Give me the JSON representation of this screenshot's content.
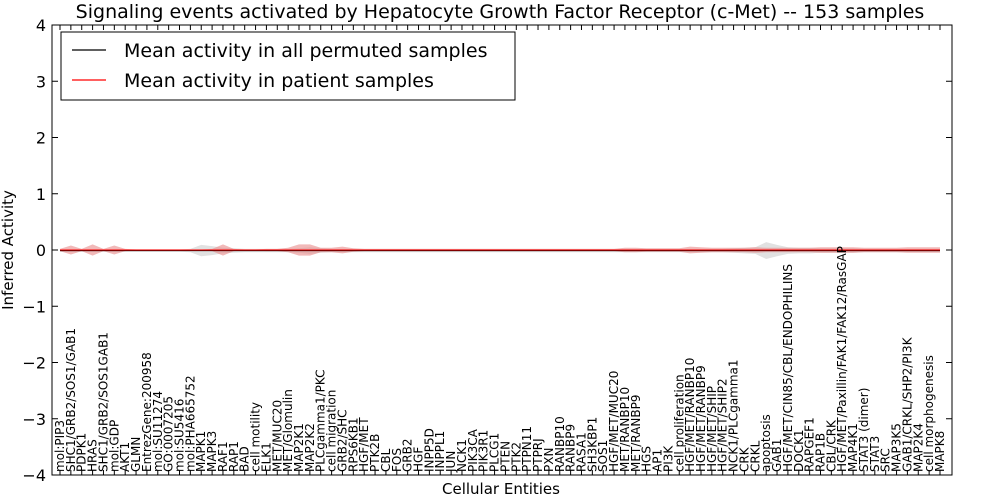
{
  "chart_data": {
    "type": "line",
    "title": "Signaling events activated by Hepatocyte Growth Factor Receptor (c-Met) -- 153 samples",
    "xlabel": "Cellular Entities",
    "ylabel": "Inferred Activity",
    "ylim": [
      -4,
      4
    ],
    "yticks": [
      4,
      3,
      2,
      1,
      0,
      -1,
      -2,
      -3,
      -4
    ],
    "ytick_labels": [
      "4",
      "3",
      "2",
      "1",
      "0",
      "−1",
      "−2",
      "−3",
      "−4"
    ],
    "legend": {
      "position": "top-left"
    },
    "categories": [
      "mol:PIP3",
      "SHC1/GRB2/SOS1/GAB1",
      "PDPK1",
      "HRAS",
      "SHC1/GRB2/SOS1GAB1",
      "mol:GDP",
      "AKT1",
      "GLMN",
      "EntrezGene:200958",
      "mol:SU11274",
      "GO:0007205",
      "mol:SU5416",
      "mol:PHA665752",
      "MAPK1",
      "MAPK3",
      "RAF1",
      "RAP1",
      "BAD",
      "cell motility",
      "ELK1",
      "MET/MUC20",
      "MET/Glomulin",
      "MAP2K1",
      "MAP2K2",
      "PLCgamma1/PKC",
      "cell migration",
      "GRB2/SHC",
      "RPS6KB1",
      "HGF/MET",
      "PTK2B",
      "CBL",
      "FOS",
      "GRB2",
      "HGF",
      "INPP5D",
      "INPPL1",
      "JUN",
      "NCK1",
      "PIK3CA",
      "PIK3R1",
      "PLCG1",
      "PTEN",
      "PTK2",
      "PTPN11",
      "PTPRJ",
      "PXN",
      "RANBP10",
      "RANBP9",
      "RASA1",
      "SH3KBP1",
      "SOS1",
      "HGF/MET/MUC20",
      "MET/RANBP10",
      "MET/RANBP9",
      "HGS",
      "AP1",
      "PI3K",
      "cell proliferation",
      "HGF/MET/RANBP10",
      "HGF/MET/RANBP9",
      "HGF/MET/SHIP",
      "HGF/MET/SHIP2",
      "NCK1/PLCgamma1",
      "CRK",
      "CRKL",
      "apoptosis",
      "GAB1",
      "HGF/MET/CIN85/CBL/ENDOPHILINS",
      "DOCK1",
      "RAPGEF1",
      "RAP1B",
      "CBL/CRK",
      "HGF/MET/Paxillin/FAK1/FAK12/RasGAP",
      "MAP4K1",
      "STAT3 (dimer)",
      "STAT3",
      "SRC",
      "MAP3K5",
      "GAB1/CRKL/SHP2/PI3K",
      "MAP2K4",
      "cell morphogenesis",
      "MAPK8"
    ],
    "series": [
      {
        "name": "Mean activity in all permuted samples",
        "color": "#000000",
        "band_color": "#c8c8c8",
        "values": [
          -0.01,
          -0.01,
          -0.01,
          -0.01,
          -0.01,
          -0.01,
          -0.01,
          -0.01,
          -0.01,
          -0.01,
          -0.01,
          -0.01,
          -0.01,
          -0.01,
          -0.01,
          -0.01,
          -0.01,
          -0.01,
          -0.01,
          -0.01,
          -0.01,
          -0.01,
          -0.01,
          -0.01,
          -0.01,
          -0.01,
          -0.01,
          -0.01,
          -0.01,
          -0.01,
          -0.01,
          -0.01,
          -0.01,
          -0.01,
          -0.01,
          -0.01,
          -0.01,
          -0.01,
          -0.01,
          -0.01,
          -0.01,
          -0.01,
          -0.01,
          -0.01,
          -0.01,
          -0.01,
          -0.01,
          -0.01,
          -0.01,
          -0.01,
          -0.01,
          -0.01,
          -0.01,
          -0.01,
          -0.01,
          -0.01,
          -0.01,
          -0.01,
          -0.01,
          -0.01,
          -0.01,
          -0.01,
          -0.01,
          -0.01,
          -0.01,
          -0.01,
          -0.01,
          -0.01,
          -0.01,
          -0.01,
          -0.01,
          -0.01,
          -0.01,
          -0.01,
          -0.01,
          -0.01,
          -0.01,
          -0.01,
          -0.01,
          -0.01,
          -0.01,
          -0.01
        ],
        "spread": [
          0.02,
          0.02,
          0.02,
          0.02,
          0.02,
          0.02,
          0.02,
          0.02,
          0.02,
          0.02,
          0.02,
          0.02,
          0.03,
          0.1,
          0.08,
          0.05,
          0.04,
          0.03,
          0.03,
          0.03,
          0.03,
          0.03,
          0.04,
          0.06,
          0.04,
          0.03,
          0.03,
          0.03,
          0.03,
          0.03,
          0.03,
          0.03,
          0.03,
          0.03,
          0.03,
          0.03,
          0.03,
          0.03,
          0.03,
          0.03,
          0.03,
          0.03,
          0.03,
          0.03,
          0.03,
          0.03,
          0.03,
          0.03,
          0.03,
          0.03,
          0.03,
          0.03,
          0.03,
          0.03,
          0.03,
          0.03,
          0.03,
          0.03,
          0.03,
          0.03,
          0.03,
          0.03,
          0.04,
          0.05,
          0.06,
          0.15,
          0.1,
          0.06,
          0.05,
          0.05,
          0.04,
          0.04,
          0.04,
          0.04,
          0.03,
          0.03,
          0.03,
          0.03,
          0.03,
          0.03,
          0.03,
          0.03
        ]
      },
      {
        "name": "Mean activity in patient samples",
        "color": "#ff0000",
        "band_color": "#e88a8a",
        "values": [
          0.0,
          0.0,
          0.0,
          0.0,
          0.0,
          0.0,
          0.0,
          0.0,
          0.0,
          0.0,
          0.0,
          0.0,
          0.0,
          0.0,
          0.0,
          0.0,
          0.0,
          0.0,
          0.0,
          0.0,
          0.0,
          0.0,
          0.0,
          0.0,
          0.0,
          0.0,
          0.0,
          0.0,
          0.0,
          0.0,
          0.0,
          0.0,
          0.0,
          0.0,
          0.0,
          0.0,
          0.0,
          0.0,
          0.0,
          0.0,
          0.0,
          0.0,
          0.0,
          0.0,
          0.0,
          0.0,
          0.0,
          0.0,
          0.0,
          0.0,
          0.0,
          0.0,
          0.0,
          0.0,
          0.0,
          0.0,
          0.0,
          0.0,
          0.0,
          0.0,
          0.0,
          0.0,
          0.0,
          0.0,
          0.0,
          0.0,
          0.0,
          0.0,
          0.0,
          0.0,
          0.0,
          0.0,
          0.0,
          0.0,
          0.0,
          0.0,
          0.0,
          0.0,
          0.0,
          0.0,
          0.0,
          0.0
        ],
        "spread": [
          0.02,
          0.08,
          0.02,
          0.1,
          0.02,
          0.08,
          0.02,
          0.01,
          0.01,
          0.01,
          0.01,
          0.01,
          0.01,
          0.01,
          0.02,
          0.1,
          0.02,
          0.01,
          0.01,
          0.02,
          0.02,
          0.04,
          0.1,
          0.1,
          0.04,
          0.04,
          0.06,
          0.03,
          0.02,
          0.02,
          0.02,
          0.02,
          0.02,
          0.02,
          0.02,
          0.02,
          0.02,
          0.02,
          0.02,
          0.02,
          0.02,
          0.02,
          0.02,
          0.02,
          0.02,
          0.02,
          0.02,
          0.02,
          0.02,
          0.02,
          0.02,
          0.02,
          0.04,
          0.04,
          0.03,
          0.03,
          0.03,
          0.03,
          0.06,
          0.05,
          0.04,
          0.04,
          0.04,
          0.04,
          0.05,
          0.04,
          0.04,
          0.04,
          0.04,
          0.04,
          0.05,
          0.05,
          0.05,
          0.05,
          0.04,
          0.04,
          0.04,
          0.04,
          0.05,
          0.05,
          0.05,
          0.05
        ]
      }
    ]
  }
}
